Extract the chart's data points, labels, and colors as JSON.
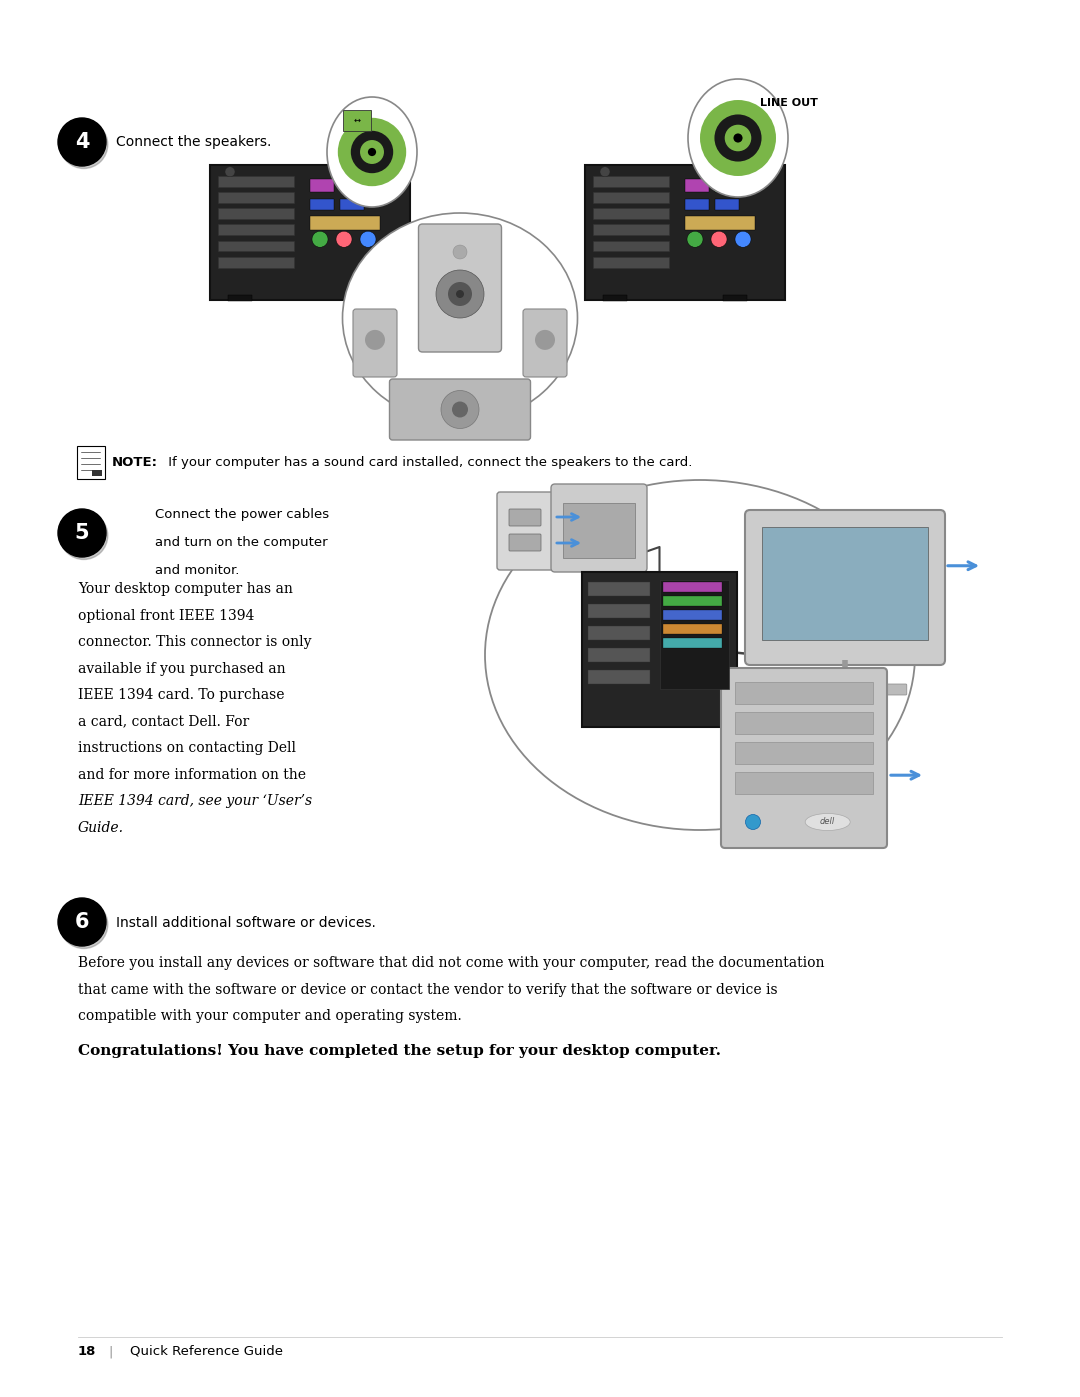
{
  "page_width": 10.8,
  "page_height": 13.97,
  "bg_color": "#ffffff",
  "step4_label": "Connect the speakers.",
  "note_bold": "NOTE:",
  "note_rest": " If your computer has a sound card installed, connect the speakers to the card.",
  "step5_label_line1": "Connect the power cables",
  "step5_label_line2": "and turn on the computer",
  "step5_label_line3": "and monitor.",
  "body_lines": [
    "Your desktop computer has an",
    "optional front IEEE 1394",
    "connector. This connector is only",
    "available if you purchased an",
    "IEEE 1394 card. To purchase",
    "a card, contact Dell. For",
    "instructions on contacting Dell",
    "and for more information on the",
    "IEEE 1394 card, see your ‘User’s",
    "Guide."
  ],
  "step6_label": "Install additional software or devices.",
  "para6_lines": [
    "Before you install any devices or software that did not come with your computer, read the documentation",
    "that came with the software or device or contact the vendor to verify that the software or device is",
    "compatible with your computer and operating system."
  ],
  "congrats_text": "Congratulations! You have completed the setup for your desktop computer.",
  "green_color": "#7ab648",
  "dark_ring": "#1a1a1a",
  "blue_arrow": "#4a90d9",
  "line_out_text": "LINE OUT",
  "footer_num": "18",
  "footer_sep": "   |   ",
  "footer_guide": "Quick Reference Guide"
}
